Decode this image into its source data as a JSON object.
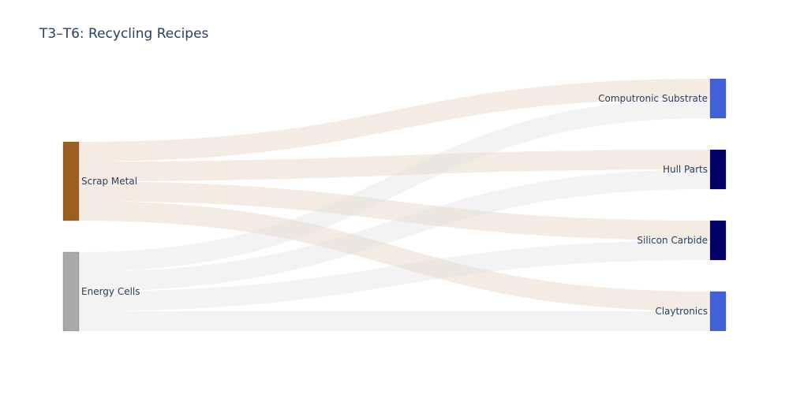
{
  "chart_data": {
    "type": "sankey",
    "title": "T3–T6: Recycling Recipes",
    "sources": [
      {
        "name": "Scrap Metal",
        "color": "#9c5f20"
      },
      {
        "name": "Energy Cells",
        "color": "#a9a9a9"
      }
    ],
    "targets": [
      {
        "name": "Computronic Substrate",
        "color": "#4161d8"
      },
      {
        "name": "Hull Parts",
        "color": "#000068"
      },
      {
        "name": "Silicon Carbide",
        "color": "#000068"
      },
      {
        "name": "Claytronics",
        "color": "#4161d8"
      }
    ],
    "links": [
      {
        "source": "Scrap Metal",
        "target": "Computronic Substrate",
        "value": 1
      },
      {
        "source": "Scrap Metal",
        "target": "Hull Parts",
        "value": 1
      },
      {
        "source": "Scrap Metal",
        "target": "Silicon Carbide",
        "value": 1
      },
      {
        "source": "Scrap Metal",
        "target": "Claytronics",
        "value": 1
      },
      {
        "source": "Energy Cells",
        "target": "Computronic Substrate",
        "value": 1
      },
      {
        "source": "Energy Cells",
        "target": "Hull Parts",
        "value": 1
      },
      {
        "source": "Energy Cells",
        "target": "Silicon Carbide",
        "value": 1
      },
      {
        "source": "Energy Cells",
        "target": "Claytronics",
        "value": 1
      }
    ],
    "link_colors": {
      "Scrap Metal": "rgba(230,210,190,0.45)",
      "Energy Cells": "rgba(220,220,220,0.35)"
    }
  }
}
